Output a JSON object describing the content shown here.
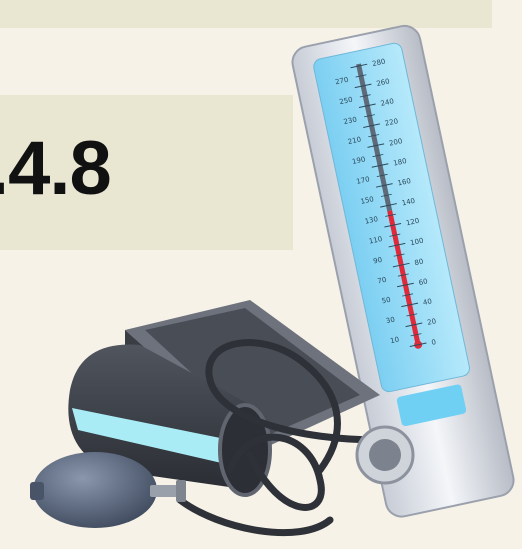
{
  "banner": {
    "text": ""
  },
  "reading": {
    "value": ".4.8"
  },
  "illustration": {
    "name": "blood-pressure-monitor",
    "icon": "sphygmomanometer-icon",
    "colors": {
      "case": "#d9dde4",
      "scale": "#8fd6f5",
      "mercury": "#e02a3a",
      "cuff": "#3b3f47",
      "cuff_stripe": "#a9ecf5",
      "bulb": "#5d6c85",
      "background": "#f7f2e8",
      "card": "#e9e6d2",
      "banner_text": "#f29a18"
    },
    "scale_labels_left": [
      "270",
      "250",
      "230",
      "210",
      "190",
      "170",
      "150",
      "130",
      "110",
      "90",
      "70",
      "50",
      "30",
      "10"
    ],
    "scale_labels_right": [
      "280",
      "260",
      "240",
      "220",
      "200",
      "180",
      "160",
      "140",
      "120",
      "100",
      "80",
      "60",
      "40",
      "20",
      "0"
    ]
  }
}
